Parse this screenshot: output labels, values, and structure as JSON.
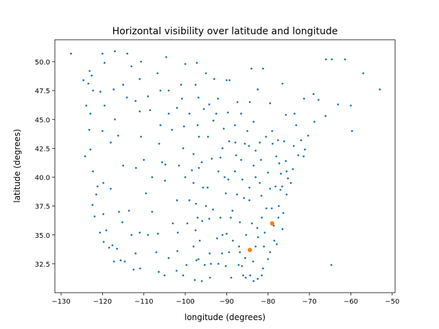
{
  "chart_data": {
    "type": "scatter",
    "title": "Horizontal visibility over latitude and longitude",
    "xlabel": "longitude (degrees)",
    "ylabel": "latitude (degrees)",
    "xlim": [
      -131.5,
      -49.3
    ],
    "ylim": [
      30.0,
      51.9
    ],
    "xticks": [
      {
        "value": -130,
        "label": "−130"
      },
      {
        "value": -120,
        "label": "−120"
      },
      {
        "value": -110,
        "label": "−110"
      },
      {
        "value": -100,
        "label": "−100"
      },
      {
        "value": -90,
        "label": "−90"
      },
      {
        "value": -80,
        "label": "−80"
      },
      {
        "value": -70,
        "label": "−70"
      },
      {
        "value": -60,
        "label": "−60"
      },
      {
        "value": -50,
        "label": "−50"
      }
    ],
    "yticks": [
      {
        "value": 32.5,
        "label": "32.5"
      },
      {
        "value": 35,
        "label": "35.0"
      },
      {
        "value": 37.5,
        "label": "37.5"
      },
      {
        "value": 40,
        "label": "40.0"
      },
      {
        "value": 42.5,
        "label": "42.5"
      },
      {
        "value": 45,
        "label": "45.0"
      },
      {
        "value": 47.5,
        "label": "47.5"
      },
      {
        "value": 50,
        "label": "50.0"
      }
    ],
    "series": [
      {
        "color": "#1f77b4",
        "size": 1.4,
        "x": [
          -124.2,
          -123.9,
          -122.3,
          -122.4,
          -121.9,
          -121.5,
          -120.6,
          -119.7,
          -118.4,
          -117.2,
          -117.6,
          -122.9,
          -123.2,
          -122.9,
          -122.3,
          -121.2,
          -119.8,
          -119.1,
          -116.5,
          -115.6,
          -117.3,
          -119.5,
          -120.5,
          -122.6,
          -123.4,
          -124.6,
          -111.9,
          -112.0,
          -110.9,
          -104.9,
          -106.6,
          -106.4,
          -108.5,
          -111.0,
          -112.0,
          -114.1,
          -116.2,
          -115.2,
          -119.8,
          -113.6,
          -109.5,
          -105.6,
          -104.8,
          -106.3,
          -110.7,
          -103.2,
          -100.8,
          -96.8,
          -97.5,
          -95.9,
          -97.4,
          -95.7,
          -96.7,
          -96.0,
          -98.4,
          -100.3,
          -96.7,
          -97.3,
          -96.8,
          -101.8,
          -101.9,
          -99.7,
          -102.1,
          -97.7,
          -93.2,
          -92.1,
          -89.4,
          -87.9,
          -87.7,
          -89.6,
          -90.2,
          -93.6,
          -91.5,
          -94.6,
          -88.0,
          -84.6,
          -83.0,
          -85.6,
          -86.2,
          -84.5,
          -83.0,
          -81.7,
          -80.0,
          -84.4,
          -87.4,
          -89.7,
          -90.7,
          -94.2,
          -95.5,
          -91.0,
          -90.2,
          -86.8,
          -86.3,
          -83.6,
          -81.2,
          -80.0,
          -81.0,
          -82.4,
          -80.8,
          -78.6,
          -77.9,
          -77.4,
          -76.3,
          -77.0,
          -76.6,
          -75.2,
          -74.0,
          -73.8,
          -71.1,
          -71.4,
          -72.7,
          -70.3,
          -68.8,
          -73.2,
          -72.0,
          -76.1,
          -77.6,
          -78.9,
          -86.8,
          -85.3,
          -83.9,
          -90.0,
          -92.3,
          -94.2,
          -93.3,
          -88.6,
          -85.8,
          -84.5,
          -81.6,
          -82.6,
          -80.4,
          -79.1,
          -78.2,
          -77.3,
          -76.9,
          -75.7,
          -88.9,
          -85.4,
          -84.3,
          -82.5,
          -87.1,
          -89.4,
          -91.1,
          -93.8,
          -95.3,
          -94.1,
          -92.0,
          -67.8,
          -69.0,
          -60.0,
          -63.1,
          -66.1,
          -64.6,
          -61.4,
          -57.0,
          -53.0,
          -59.7,
          -66.0,
          -64.7,
          -127.6,
          -120.0,
          -117.0,
          -114.0,
          -104.6,
          -97.2,
          -90.0,
          -89.3,
          -84.0,
          -79.5,
          -75.7,
          -73.6,
          -71.3,
          -110.7,
          -106.7,
          -100.0,
          -95.0,
          -81.2,
          -76.5,
          -82.5,
          -123.1,
          -119.5,
          -113.0,
          -100.0,
          -102.0,
          -99.0,
          -103.0,
          -104.0,
          -107.0,
          -109.0,
          -108.0,
          -111.0,
          -113.0,
          -114.6,
          -112.5,
          -105.0,
          -100.5,
          -96.0,
          -94.0,
          -98.0,
          -96.5,
          -99.5,
          -97.0,
          -95.0,
          -98.0,
          -101.5,
          -100.5,
          -98.0,
          -97.0,
          -99.0,
          -102.0,
          -104.0,
          -106.0,
          -109.0,
          -111.0,
          -115.0,
          -117.0,
          -118.0,
          -120.0,
          -115.0,
          -118.0,
          -116.0,
          -110.0,
          -108.0,
          -106.0,
          -104.0,
          -101.0,
          -97.5,
          -93.0,
          -92.5,
          -94.5,
          -92.0,
          -90.5,
          -88.0,
          -86.5,
          -87.5,
          -89.0,
          -91.5,
          -91.0,
          -88.5,
          -87.0,
          -85.5,
          -83.0,
          -81.5,
          -79.5,
          -82.0,
          -83.5,
          -85.0,
          -86.5,
          -83.5,
          -82.0,
          -80.5,
          -79.0,
          -78.0,
          -75.5,
          -74.5,
          -75.5,
          -76.5,
          -77.5,
          -78.5,
          -79.5,
          -81.5,
          -83.5,
          -86.0
        ],
        "values": [
          41.8,
          46.2,
          47.5,
          37.6,
          36.6,
          38.5,
          35.2,
          34.4,
          33.9,
          32.7,
          34.1,
          45.5,
          44.1,
          42.4,
          40.5,
          39.2,
          36.8,
          35.4,
          33.8,
          32.8,
          47.6,
          46.2,
          47.4,
          48.8,
          48.1,
          48.4,
          40.8,
          33.4,
          32.1,
          39.7,
          35.1,
          31.8,
          45.8,
          45.7,
          46.6,
          46.9,
          43.6,
          36.1,
          39.5,
          37.1,
          38.6,
          41.3,
          41.1,
          42.9,
          43.5,
          44.1,
          46.8,
          46.9,
          35.4,
          36.2,
          37.7,
          39.1,
          40.8,
          41.3,
          40.6,
          44.4,
          43.5,
          32.8,
          32.9,
          35.2,
          33.6,
          32.4,
          31.9,
          31.1,
          44.9,
          46.8,
          43.1,
          43.0,
          41.9,
          39.8,
          38.6,
          41.6,
          41.7,
          39.1,
          44.5,
          42.7,
          42.3,
          42.9,
          39.8,
          39.1,
          40.0,
          41.5,
          40.4,
          46.5,
          46.5,
          45.6,
          44.2,
          46.3,
          45.9,
          42.5,
          32.3,
          33.5,
          32.3,
          32.7,
          32.1,
          32.9,
          34.0,
          34.8,
          35.2,
          35.8,
          34.2,
          37.5,
          36.9,
          38.9,
          39.2,
          39.9,
          40.7,
          42.7,
          42.4,
          41.8,
          41.9,
          43.6,
          44.8,
          44.5,
          43.2,
          43.1,
          43.2,
          42.9,
          36.1,
          35.0,
          36.0,
          35.1,
          34.7,
          36.4,
          37.2,
          37.1,
          38.2,
          38.0,
          38.4,
          35.6,
          37.3,
          37.3,
          39.2,
          41.2,
          40.3,
          41.4,
          31.3,
          31.3,
          31.5,
          31.2,
          32.4,
          33.5,
          33.4,
          32.5,
          32.4,
          33.4,
          32.5,
          46.7,
          47.2,
          46.2,
          46.3,
          45.3,
          50.2,
          50.2,
          49.0,
          47.6,
          44.0,
          50.2,
          32.4,
          50.7,
          50.7,
          50.9,
          50.7,
          50.4,
          49.9,
          48.4,
          48.4,
          49.4,
          46.4,
          45.4,
          45.5,
          46.8,
          50.0,
          49.0,
          49.8,
          49.0,
          49.4,
          48.1,
          47.6,
          49.2,
          49.9,
          49.6,
          40.0,
          38.0,
          38.0,
          36.0,
          33.0,
          33.5,
          35.0,
          37.0,
          35.2,
          35.0,
          32.7,
          32.0,
          31.5,
          31.5,
          31.0,
          31.3,
          34.0,
          34.5,
          36.0,
          36.5,
          37.5,
          39.5,
          41.0,
          42.5,
          42.0,
          44.5,
          45.5,
          46.0,
          47.5,
          47.5,
          47.0,
          48.5,
          48.0,
          45.0,
          43.0,
          44.0,
          41.0,
          39.0,
          37.0,
          41.5,
          40.0,
          44.5,
          45.5,
          48.0,
          48.0,
          48.5,
          45.5,
          43.5,
          40.5,
          40.0,
          40.5,
          41.5,
          38.5,
          36.5,
          36.5,
          35.0,
          34.5,
          34.0,
          33.0,
          34.0,
          36.5,
          39.0,
          39.5,
          41.0,
          44.0,
          45.5,
          44.8,
          43.0,
          43.5,
          44.0,
          41.8,
          40.5,
          39.5,
          38.5,
          35.5,
          36.5,
          34.5,
          33.5,
          31.5,
          31.0,
          31.5
        ]
      },
      {
        "color": "#ff7f0e",
        "size": 3.2,
        "x": [
          -84.4,
          -79.0
        ],
        "values": [
          33.7,
          36.0
        ]
      }
    ]
  }
}
